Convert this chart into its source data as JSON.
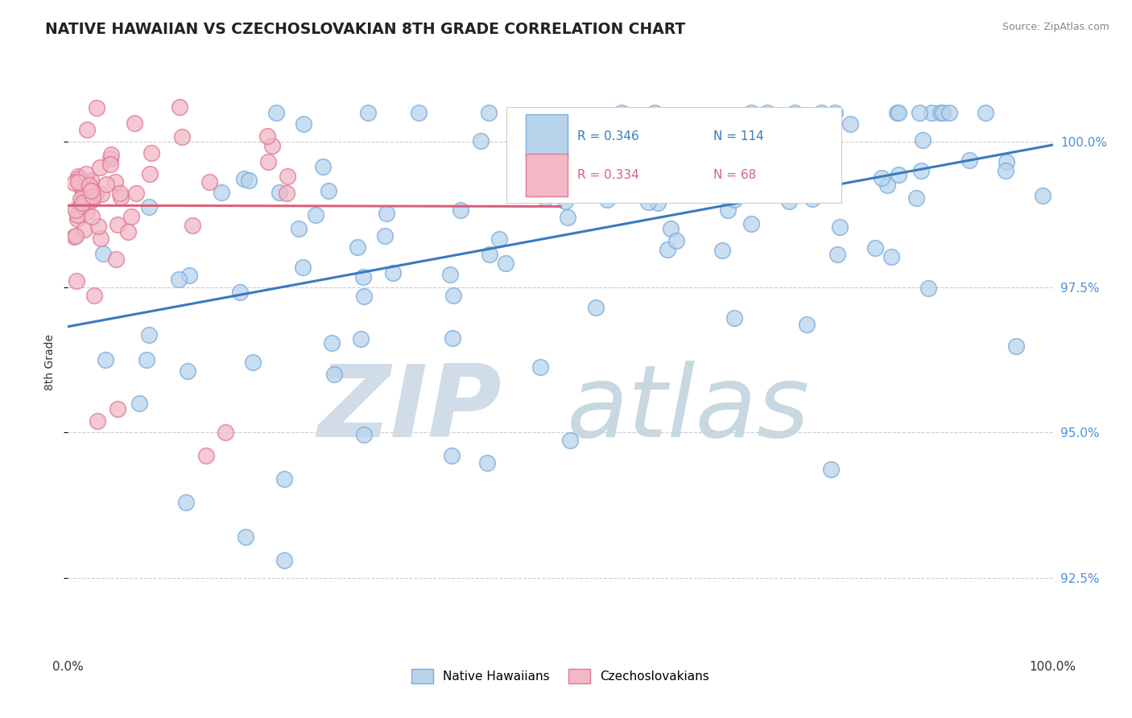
{
  "title": "NATIVE HAWAIIAN VS CZECHOSLOVAKIAN 8TH GRADE CORRELATION CHART",
  "source": "Source: ZipAtlas.com",
  "ylabel": "8th Grade",
  "y_tick_values": [
    92.5,
    95.0,
    97.5,
    100.0
  ],
  "x_range": [
    0.0,
    100.0
  ],
  "y_range": [
    91.2,
    101.2
  ],
  "legend_blue_label": "Native Hawaiians",
  "legend_pink_label": "Czechoslovakians",
  "r_blue": 0.346,
  "n_blue": 114,
  "r_pink": 0.334,
  "n_pink": 68,
  "blue_fill": "#b8d4ed",
  "blue_edge": "#7aabdb",
  "blue_line": "#3a7abf",
  "pink_fill": "#f2b8c6",
  "pink_edge": "#e07898",
  "pink_line": "#d9607a",
  "grid_color": "#cccccc",
  "title_color": "#222222",
  "source_color": "#888888",
  "tick_color": "#4a90d9",
  "watermark_zip_color": "#d0dce8",
  "watermark_atlas_color": "#c8d8e0"
}
